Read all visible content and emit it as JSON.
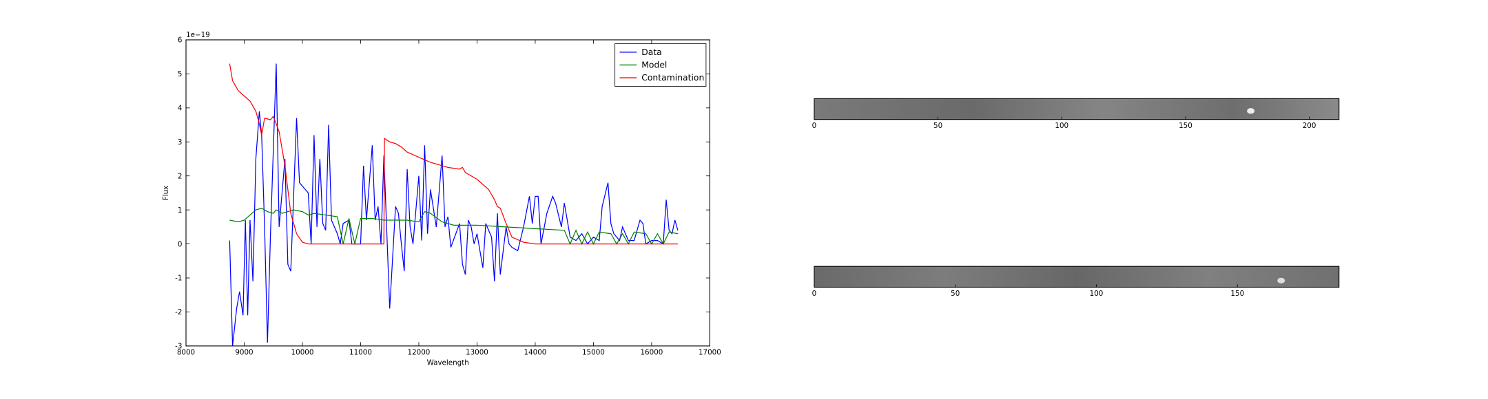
{
  "chart_data": [
    {
      "type": "line",
      "xlabel": "Wavelength",
      "ylabel": "Flux",
      "offset_text": "1e−19",
      "xlim": [
        8000,
        17000
      ],
      "xticks": [
        8000,
        9000,
        10000,
        11000,
        12000,
        13000,
        14000,
        15000,
        16000,
        17000
      ],
      "ylim": [
        -3,
        6
      ],
      "yticks": [
        -3,
        -2,
        -1,
        0,
        1,
        2,
        3,
        4,
        5,
        6
      ],
      "legend": "upper right",
      "series": [
        {
          "name": "Data",
          "color": "#0000ff",
          "x": [
            8750,
            8800,
            8870,
            8920,
            8980,
            9020,
            9060,
            9100,
            9150,
            9200,
            9260,
            9300,
            9350,
            9400,
            9450,
            9550,
            9600,
            9700,
            9750,
            9800,
            9900,
            9950,
            10050,
            10100,
            10150,
            10200,
            10250,
            10300,
            10350,
            10400,
            10450,
            10500,
            10600,
            10650,
            10700,
            10800,
            10850,
            11000,
            11050,
            11100,
            11200,
            11250,
            11300,
            11350,
            11400,
            11500,
            11600,
            11650,
            11700,
            11750,
            11800,
            11850,
            11900,
            12000,
            12050,
            12100,
            12150,
            12200,
            12300,
            12400,
            12450,
            12500,
            12550,
            12700,
            12750,
            12800,
            12850,
            12900,
            12950,
            13000,
            13100,
            13150,
            13250,
            13300,
            13350,
            13400,
            13500,
            13550,
            13600,
            13700,
            13800,
            13900,
            13950,
            14000,
            14050,
            14100,
            14200,
            14300,
            14350,
            14450,
            14500,
            14600,
            14700,
            14800,
            14900,
            15000,
            15100,
            15150,
            15250,
            15300,
            15350,
            15450,
            15500,
            15600,
            15700,
            15800,
            15850,
            15900,
            16000,
            16100,
            16200,
            16250,
            16300,
            16350,
            16400,
            16450
          ],
          "values": [
            0.1,
            -3.0,
            -1.9,
            -1.4,
            -2.1,
            0.7,
            -2.1,
            0.7,
            -1.1,
            2.5,
            3.9,
            3.2,
            0.5,
            -2.9,
            0.2,
            5.3,
            0.5,
            2.5,
            -0.6,
            -0.8,
            3.7,
            1.8,
            1.6,
            1.5,
            0,
            3.2,
            0.5,
            2.5,
            0.6,
            0.4,
            3.5,
            0.7,
            0.3,
            0,
            0.6,
            0.7,
            0,
            0,
            2.3,
            0.7,
            2.9,
            0.7,
            1.1,
            0,
            2.6,
            -1.9,
            1.1,
            0.9,
            0,
            -0.8,
            2.2,
            0.5,
            0,
            2.0,
            0.1,
            2.9,
            0.3,
            1.6,
            0.5,
            2.6,
            0.5,
            0.8,
            -0.1,
            0.6,
            -0.6,
            -0.9,
            0.7,
            0.5,
            0,
            0.3,
            -0.7,
            0.6,
            0.2,
            -1.1,
            0.9,
            -0.9,
            0.5,
            0,
            -0.1,
            -0.2,
            0.5,
            1.4,
            0.6,
            1.4,
            1.4,
            0,
            0.9,
            1.4,
            1.2,
            0.5,
            1.2,
            0.2,
            0.1,
            0.3,
            0,
            0.2,
            0.1,
            1.1,
            1.8,
            0.6,
            0.3,
            0.1,
            0.5,
            0.1,
            0.1,
            0.7,
            0.6,
            0,
            0.1,
            0.1,
            0,
            1.3,
            0.4,
            0.3,
            0.7,
            0.4
          ]
        },
        {
          "name": "Model",
          "color": "#008000",
          "x": [
            8750,
            8900,
            9000,
            9100,
            9200,
            9300,
            9400,
            9500,
            9550,
            9650,
            9750,
            9850,
            10000,
            10100,
            10200,
            10400,
            10600,
            10700,
            10800,
            10900,
            11000,
            11200,
            11400,
            11600,
            11800,
            12000,
            12100,
            12200,
            12400,
            12600,
            13000,
            13500,
            14000,
            14500,
            14600,
            14700,
            14800,
            14900,
            15000,
            15100,
            15300,
            15400,
            15500,
            15600,
            15700,
            15900,
            16000,
            16100,
            16200,
            16300,
            16450
          ],
          "values": [
            0.7,
            0.65,
            0.7,
            0.85,
            1.0,
            1.05,
            0.95,
            0.9,
            1.0,
            0.9,
            0.95,
            1.0,
            0.95,
            0.85,
            0.9,
            0.85,
            0.8,
            0,
            0.75,
            0,
            0.75,
            0.75,
            0.7,
            0.7,
            0.7,
            0.65,
            0.95,
            0.9,
            0.65,
            0.55,
            0.55,
            0.5,
            0.45,
            0.4,
            0,
            0.4,
            0,
            0.35,
            0,
            0.35,
            0.3,
            0,
            0.3,
            0,
            0.35,
            0.3,
            0,
            0.3,
            0,
            0.35,
            0.3
          ]
        },
        {
          "name": "Contamination",
          "color": "#ff0000",
          "x": [
            8750,
            8800,
            8900,
            9000,
            9100,
            9200,
            9250,
            9300,
            9350,
            9450,
            9500,
            9600,
            9700,
            9800,
            9900,
            10000,
            10100,
            11400,
            11410,
            11500,
            11600,
            11700,
            11800,
            12000,
            12200,
            12500,
            12700,
            12750,
            12800,
            13000,
            13200,
            13300,
            13350,
            13400,
            13500,
            13600,
            13800,
            14000,
            16450
          ],
          "values": [
            5.3,
            4.8,
            4.5,
            4.35,
            4.2,
            3.9,
            3.6,
            3.2,
            3.7,
            3.65,
            3.75,
            3.3,
            2.3,
            0.9,
            0.3,
            0.05,
            0,
            0,
            3.1,
            3.0,
            2.95,
            2.85,
            2.7,
            2.55,
            2.4,
            2.25,
            2.2,
            2.25,
            2.1,
            1.9,
            1.6,
            1.3,
            1.1,
            1.05,
            0.6,
            0.2,
            0.05,
            0,
            0
          ]
        }
      ]
    },
    {
      "type": "image",
      "xlim": [
        0,
        212
      ],
      "xticks": [
        0,
        50,
        100,
        150,
        200
      ]
    },
    {
      "type": "image",
      "xlim": [
        0,
        186
      ],
      "xticks": [
        0,
        50,
        100,
        150
      ]
    }
  ]
}
